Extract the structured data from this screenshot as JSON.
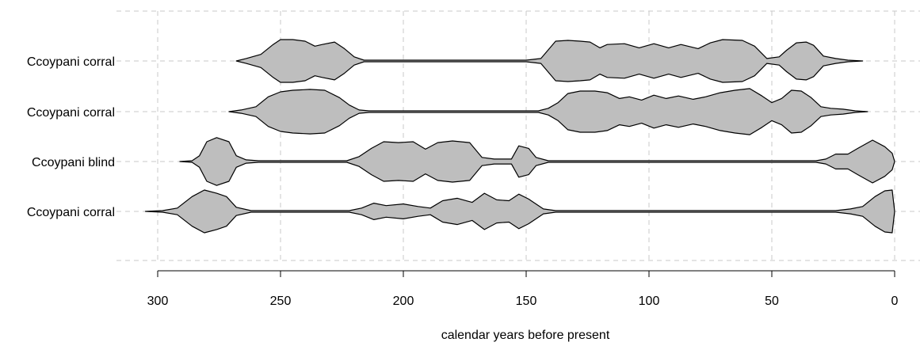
{
  "chart_data": {
    "type": "violin",
    "title": "",
    "xlabel": "calendar years before present",
    "ylabel": "",
    "xlim": [
      305,
      0
    ],
    "x_direction": "reversed",
    "xticks": [
      300,
      250,
      200,
      150,
      100,
      50,
      0
    ],
    "grid": true,
    "fill_color": "#bebebe",
    "outline_color": "#000000",
    "series": [
      {
        "name": "Ccoypani corral",
        "x_range": [
          268,
          13
        ],
        "density": [
          [
            268,
            0.0
          ],
          [
            264,
            0.06
          ],
          [
            258,
            0.16
          ],
          [
            253,
            0.4
          ],
          [
            250,
            0.52
          ],
          [
            245,
            0.52
          ],
          [
            240,
            0.48
          ],
          [
            236,
            0.36
          ],
          [
            233,
            0.4
          ],
          [
            228,
            0.46
          ],
          [
            224,
            0.3
          ],
          [
            220,
            0.1
          ],
          [
            216,
            0.02
          ],
          [
            150,
            0.02
          ],
          [
            144,
            0.06
          ],
          [
            138,
            0.48
          ],
          [
            133,
            0.5
          ],
          [
            128,
            0.48
          ],
          [
            124,
            0.46
          ],
          [
            120,
            0.32
          ],
          [
            117,
            0.4
          ],
          [
            110,
            0.42
          ],
          [
            104,
            0.32
          ],
          [
            98,
            0.42
          ],
          [
            92,
            0.32
          ],
          [
            87,
            0.4
          ],
          [
            80,
            0.3
          ],
          [
            75,
            0.44
          ],
          [
            70,
            0.52
          ],
          [
            62,
            0.5
          ],
          [
            57,
            0.36
          ],
          [
            52,
            0.06
          ],
          [
            47,
            0.1
          ],
          [
            44,
            0.26
          ],
          [
            40,
            0.44
          ],
          [
            36,
            0.46
          ],
          [
            33,
            0.38
          ],
          [
            29,
            0.12
          ],
          [
            24,
            0.06
          ],
          [
            19,
            0.02
          ],
          [
            13,
            0.0
          ]
        ]
      },
      {
        "name": "Ccoypani corral",
        "x_range": [
          271,
          11
        ],
        "density": [
          [
            271,
            0.0
          ],
          [
            266,
            0.04
          ],
          [
            260,
            0.12
          ],
          [
            255,
            0.36
          ],
          [
            250,
            0.48
          ],
          [
            245,
            0.52
          ],
          [
            238,
            0.54
          ],
          [
            232,
            0.52
          ],
          [
            226,
            0.34
          ],
          [
            222,
            0.16
          ],
          [
            218,
            0.04
          ],
          [
            214,
            0.02
          ],
          [
            145,
            0.02
          ],
          [
            141,
            0.08
          ],
          [
            137,
            0.22
          ],
          [
            133,
            0.44
          ],
          [
            128,
            0.5
          ],
          [
            122,
            0.5
          ],
          [
            117,
            0.46
          ],
          [
            112,
            0.32
          ],
          [
            108,
            0.36
          ],
          [
            103,
            0.28
          ],
          [
            98,
            0.4
          ],
          [
            93,
            0.32
          ],
          [
            88,
            0.38
          ],
          [
            82,
            0.3
          ],
          [
            77,
            0.36
          ],
          [
            71,
            0.46
          ],
          [
            65,
            0.52
          ],
          [
            59,
            0.56
          ],
          [
            54,
            0.38
          ],
          [
            50,
            0.22
          ],
          [
            46,
            0.32
          ],
          [
            42,
            0.52
          ],
          [
            38,
            0.5
          ],
          [
            34,
            0.34
          ],
          [
            30,
            0.12
          ],
          [
            26,
            0.08
          ],
          [
            21,
            0.06
          ],
          [
            16,
            0.02
          ],
          [
            11,
            0.0
          ]
        ]
      },
      {
        "name": "Ccoypani blind",
        "x_range": [
          291,
          0
        ],
        "density": [
          [
            291,
            0.0
          ],
          [
            286,
            0.02
          ],
          [
            283,
            0.14
          ],
          [
            280,
            0.48
          ],
          [
            276,
            0.58
          ],
          [
            271,
            0.48
          ],
          [
            268,
            0.14
          ],
          [
            264,
            0.04
          ],
          [
            259,
            0.02
          ],
          [
            223,
            0.02
          ],
          [
            218,
            0.12
          ],
          [
            213,
            0.32
          ],
          [
            208,
            0.48
          ],
          [
            202,
            0.46
          ],
          [
            196,
            0.48
          ],
          [
            191,
            0.3
          ],
          [
            186,
            0.46
          ],
          [
            180,
            0.5
          ],
          [
            173,
            0.46
          ],
          [
            168,
            0.1
          ],
          [
            163,
            0.06
          ],
          [
            156,
            0.06
          ],
          [
            153,
            0.38
          ],
          [
            149,
            0.32
          ],
          [
            146,
            0.1
          ],
          [
            141,
            0.02
          ],
          [
            32,
            0.02
          ],
          [
            28,
            0.06
          ],
          [
            24,
            0.18
          ],
          [
            19,
            0.18
          ],
          [
            15,
            0.32
          ],
          [
            9,
            0.52
          ],
          [
            4,
            0.36
          ],
          [
            1,
            0.2
          ],
          [
            0,
            0.0
          ]
        ]
      },
      {
        "name": "Ccoypani corral",
        "x_range": [
          305,
          0
        ],
        "density": [
          [
            305,
            0.0
          ],
          [
            298,
            0.02
          ],
          [
            292,
            0.08
          ],
          [
            286,
            0.36
          ],
          [
            281,
            0.52
          ],
          [
            276,
            0.44
          ],
          [
            272,
            0.36
          ],
          [
            268,
            0.1
          ],
          [
            262,
            0.02
          ],
          [
            222,
            0.02
          ],
          [
            217,
            0.08
          ],
          [
            212,
            0.2
          ],
          [
            207,
            0.14
          ],
          [
            200,
            0.18
          ],
          [
            194,
            0.12
          ],
          [
            189,
            0.08
          ],
          [
            184,
            0.26
          ],
          [
            178,
            0.32
          ],
          [
            172,
            0.22
          ],
          [
            167,
            0.44
          ],
          [
            162,
            0.28
          ],
          [
            157,
            0.26
          ],
          [
            153,
            0.42
          ],
          [
            149,
            0.3
          ],
          [
            143,
            0.06
          ],
          [
            138,
            0.02
          ],
          [
            24,
            0.02
          ],
          [
            18,
            0.06
          ],
          [
            13,
            0.12
          ],
          [
            8,
            0.36
          ],
          [
            4,
            0.5
          ],
          [
            1,
            0.52
          ],
          [
            0,
            0.0
          ]
        ]
      }
    ]
  }
}
